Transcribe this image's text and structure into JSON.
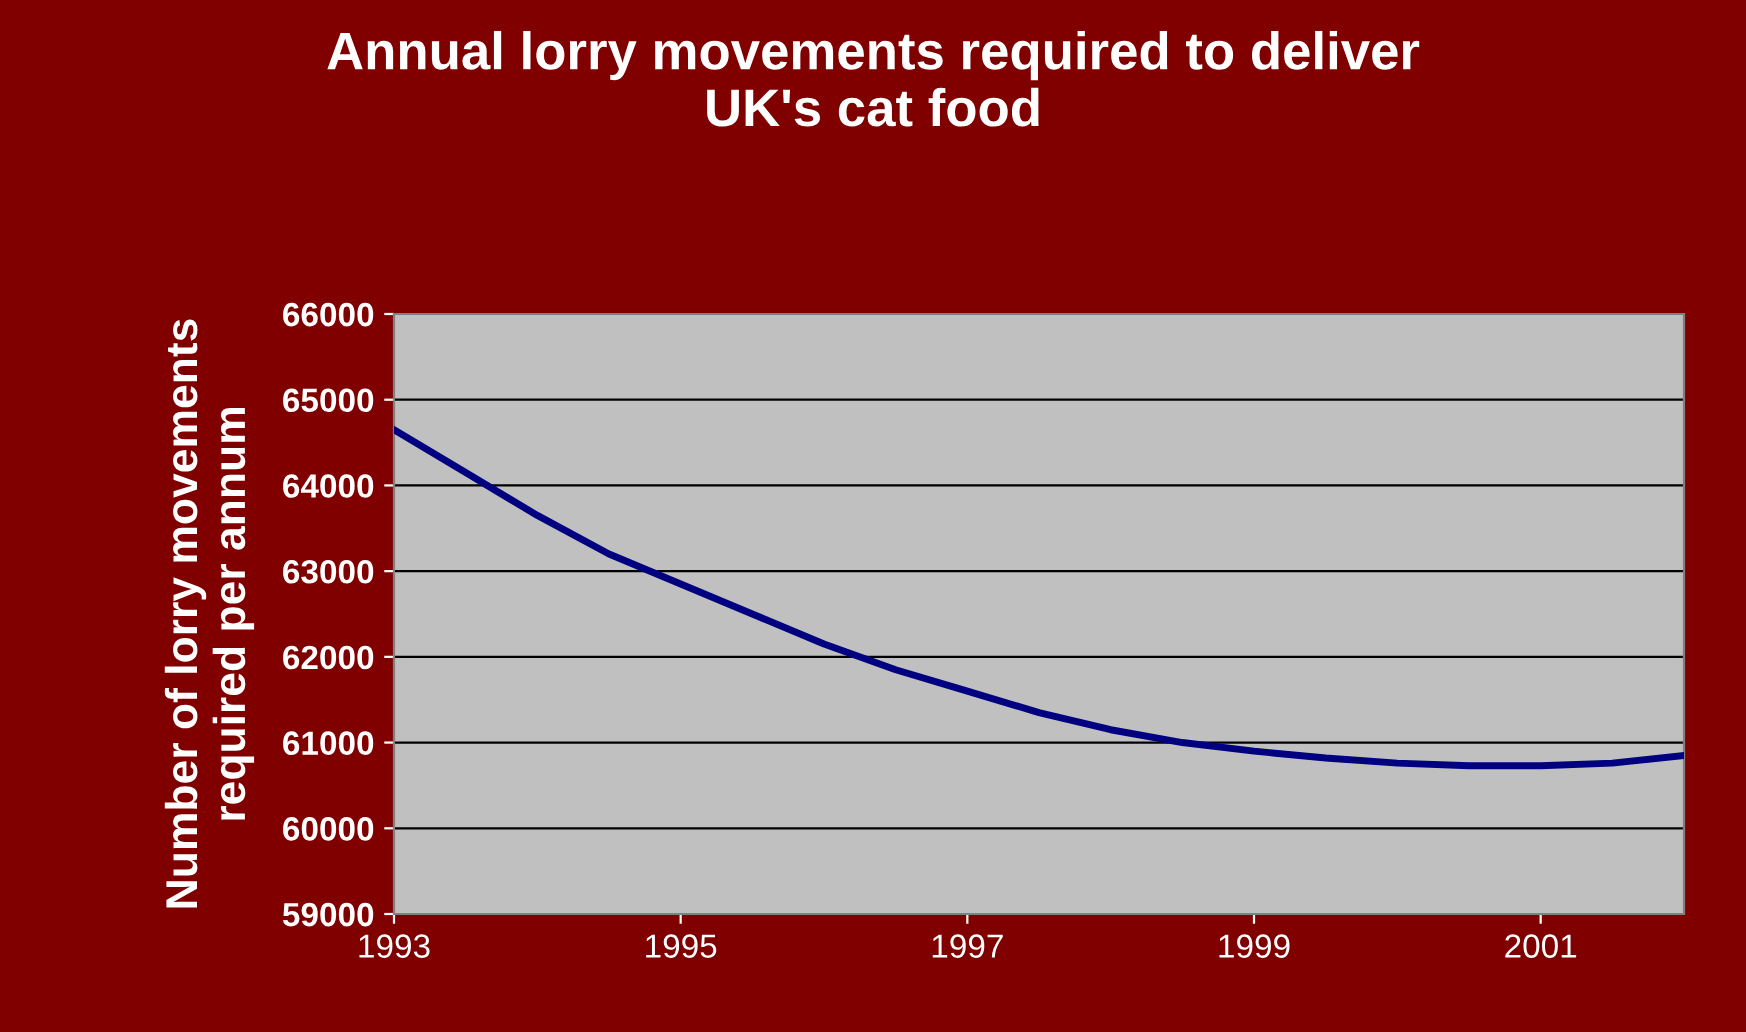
{
  "chart_data": {
    "type": "line",
    "title": "Annual lorry movements required to deliver\nUK's cat food",
    "ylabel": "Number of lorry movements\nrequired per annum",
    "x": [
      1993,
      1993.5,
      1994,
      1994.5,
      1995,
      1995.5,
      1996,
      1996.5,
      1997,
      1997.5,
      1998,
      1998.5,
      1999,
      1999.5,
      2000,
      2000.5,
      2001,
      2001.5,
      2002
    ],
    "series": [
      {
        "color": "#000080",
        "values": [
          64650,
          64150,
          63650,
          63200,
          62850,
          62500,
          62150,
          61850,
          61600,
          61350,
          61150,
          61000,
          60900,
          60820,
          60760,
          60730,
          60730,
          60760,
          60850
        ]
      }
    ],
    "xlim": [
      1993,
      2002
    ],
    "xticks": [
      1993,
      1995,
      1997,
      1999,
      2001
    ],
    "ylim": [
      59000,
      66000
    ],
    "yticks": [
      59000,
      60000,
      61000,
      62000,
      63000,
      64000,
      65000,
      66000
    ],
    "grid": "y",
    "legend": false,
    "marker": "none",
    "line_style": "solid"
  }
}
